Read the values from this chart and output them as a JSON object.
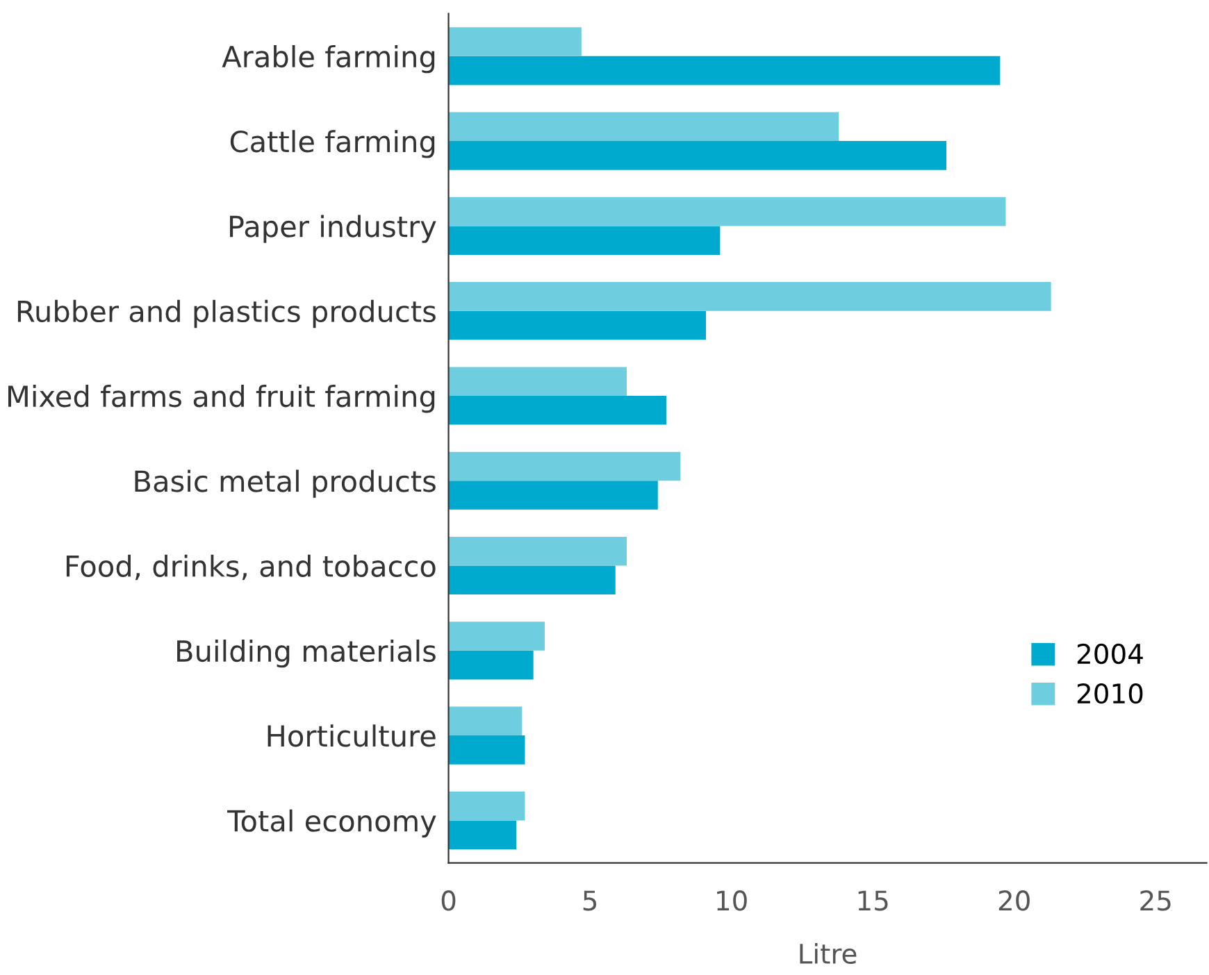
{
  "chart_data": {
    "type": "bar",
    "orientation": "horizontal",
    "xlabel": "Litre",
    "categories": [
      "Arable farming",
      "Cattle farming",
      "Paper industry",
      "Rubber and plastics products",
      "Mixed farms and fruit farming",
      "Basic metal products",
      "Food, drinks, and tobacco",
      "Building materials",
      "Horticulture",
      "Total economy"
    ],
    "series": [
      {
        "name": "2004",
        "color": "#00a9ce",
        "values": [
          19.5,
          17.6,
          9.6,
          9.1,
          7.7,
          7.4,
          5.9,
          3.0,
          2.7,
          2.4
        ]
      },
      {
        "name": "2010",
        "color": "#6fcde0",
        "values": [
          4.7,
          13.8,
          19.7,
          21.3,
          6.3,
          8.2,
          6.3,
          3.4,
          2.6,
          2.7
        ]
      }
    ],
    "xlim": [
      0,
      26.8
    ],
    "xticks": [
      0,
      5,
      10,
      15,
      20,
      25
    ],
    "grid": false,
    "legend": "right"
  }
}
